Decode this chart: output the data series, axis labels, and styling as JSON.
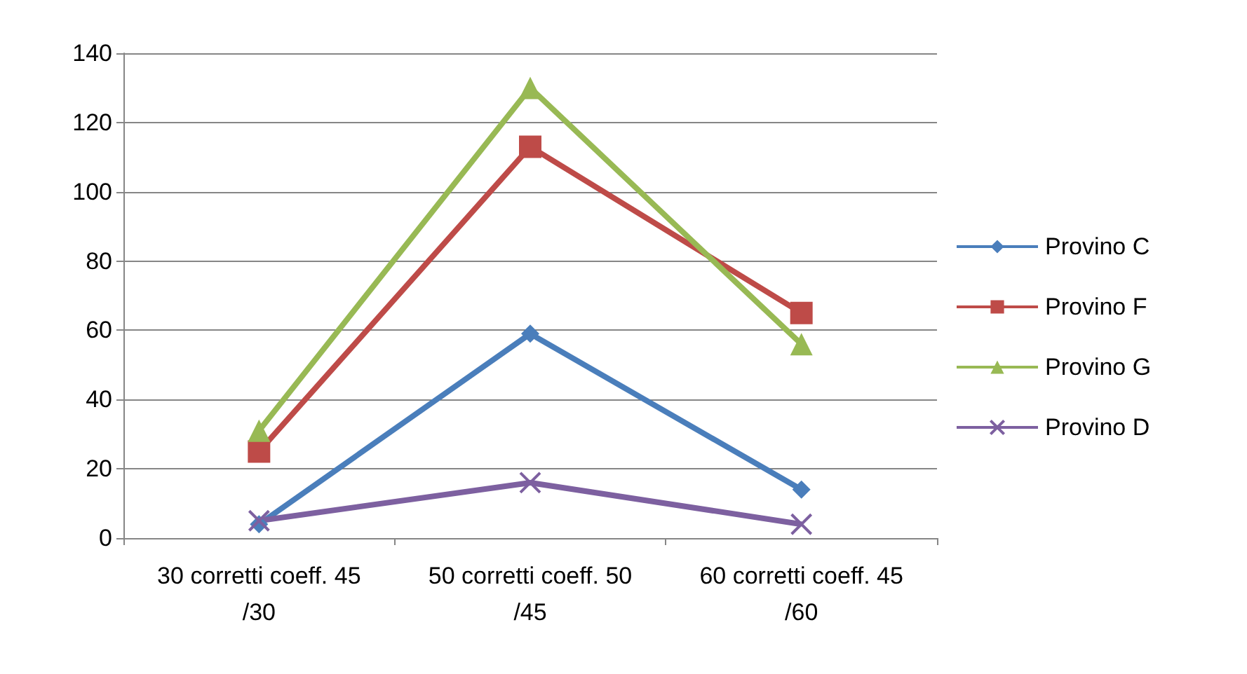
{
  "chart_data": {
    "type": "line",
    "categories": [
      "30 corretti coeff. 45/30",
      "50 corretti coeff. 50/45",
      "60 corretti coeff. 45/60"
    ],
    "series": [
      {
        "name": "Provino C",
        "color": "#4a7ebb",
        "marker": "diamond",
        "values": [
          4,
          59,
          14
        ]
      },
      {
        "name": "Provino F",
        "color": "#be4b48",
        "marker": "square",
        "values": [
          25,
          113,
          65
        ]
      },
      {
        "name": "Provino G",
        "color": "#98b954",
        "marker": "triangle",
        "values": [
          31,
          130,
          56
        ]
      },
      {
        "name": "Provino D",
        "color": "#7d60a0",
        "marker": "cross",
        "values": [
          5,
          16,
          4
        ]
      }
    ],
    "ylim": [
      0,
      140
    ],
    "yticks": [
      0,
      20,
      40,
      60,
      80,
      100,
      120,
      140
    ],
    "grid": "y",
    "legend": "right"
  }
}
